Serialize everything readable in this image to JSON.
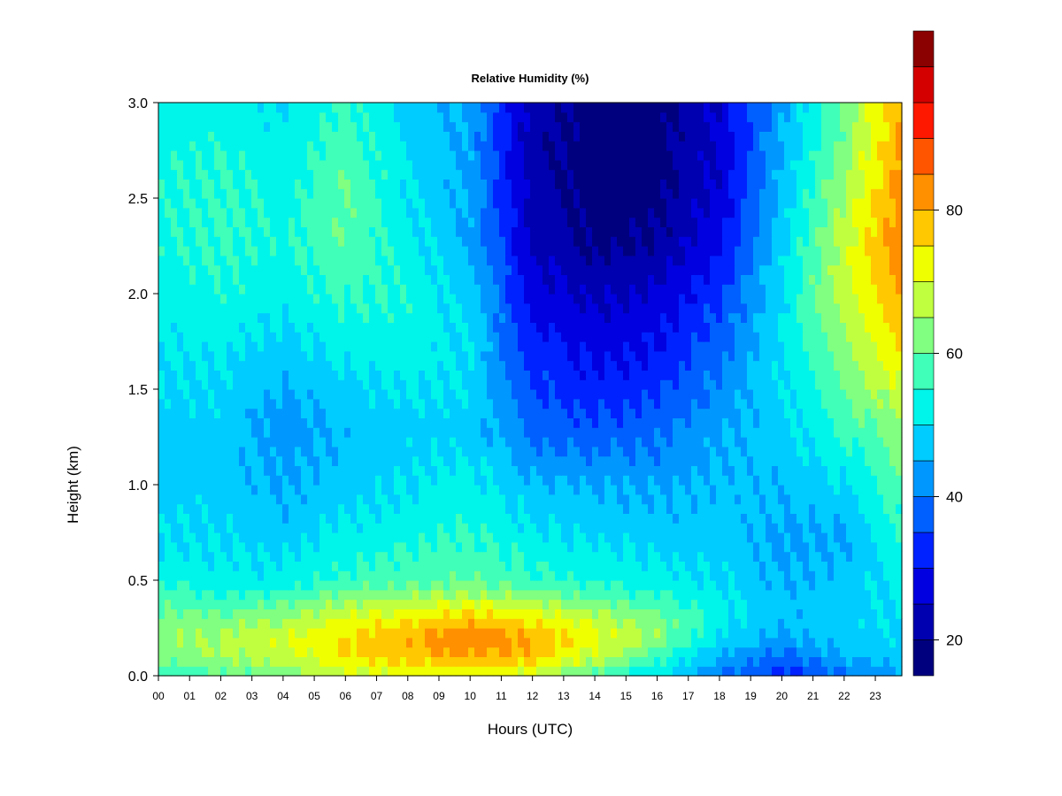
{
  "chart_data": {
    "type": "heatmap",
    "title": "Relative Humidity (%)",
    "xlabel": "Hours (UTC)",
    "ylabel": "Height (km)",
    "xlim": [
      0,
      23.85
    ],
    "ylim": [
      0,
      3.0
    ],
    "x_ticks": [
      "00",
      "01",
      "02",
      "03",
      "04",
      "05",
      "06",
      "07",
      "08",
      "09",
      "10",
      "11",
      "12",
      "13",
      "14",
      "15",
      "16",
      "17",
      "18",
      "19",
      "20",
      "21",
      "22",
      "23"
    ],
    "y_ticks": [
      "0.0",
      "0.5",
      "1.0",
      "1.5",
      "2.0",
      "2.5",
      "3.0"
    ],
    "heights_km": [
      0.0,
      0.1,
      0.2,
      0.3,
      0.4,
      0.5,
      0.7,
      1.0,
      1.3,
      1.6,
      2.0,
      2.3,
      2.6,
      3.0
    ],
    "hours": [
      0,
      2,
      4,
      6,
      8,
      10,
      12,
      14,
      16,
      18,
      20,
      22,
      23.8
    ],
    "rh_percent": [
      [
        55,
        58,
        62,
        68,
        70,
        70,
        68,
        58,
        50,
        40,
        33,
        38,
        45
      ],
      [
        62,
        65,
        68,
        75,
        78,
        80,
        78,
        68,
        58,
        45,
        38,
        45,
        48
      ],
      [
        64,
        66,
        70,
        76,
        80,
        84,
        80,
        72,
        64,
        50,
        44,
        48,
        50
      ],
      [
        62,
        62,
        64,
        70,
        74,
        78,
        74,
        68,
        62,
        52,
        46,
        48,
        50
      ],
      [
        58,
        56,
        58,
        64,
        66,
        68,
        64,
        60,
        56,
        52,
        46,
        48,
        50
      ],
      [
        54,
        52,
        52,
        56,
        58,
        60,
        56,
        54,
        52,
        50,
        45,
        47,
        52
      ],
      [
        50,
        50,
        48,
        52,
        54,
        56,
        52,
        50,
        48,
        48,
        44,
        44,
        54
      ],
      [
        48,
        48,
        44,
        48,
        50,
        52,
        46,
        45,
        44,
        46,
        46,
        50,
        58
      ],
      [
        48,
        48,
        42,
        46,
        48,
        48,
        38,
        36,
        38,
        44,
        48,
        56,
        64
      ],
      [
        50,
        50,
        46,
        50,
        52,
        50,
        34,
        30,
        32,
        40,
        50,
        62,
        72
      ],
      [
        52,
        54,
        52,
        56,
        54,
        48,
        28,
        24,
        26,
        34,
        50,
        68,
        82
      ],
      [
        54,
        56,
        54,
        60,
        52,
        44,
        24,
        18,
        20,
        28,
        48,
        68,
        84
      ],
      [
        54,
        56,
        52,
        60,
        50,
        44,
        22,
        17,
        18,
        26,
        46,
        64,
        82
      ],
      [
        52,
        52,
        50,
        56,
        48,
        44,
        22,
        18,
        18,
        26,
        44,
        60,
        80
      ]
    ],
    "colorbar": {
      "range": [
        15,
        95
      ],
      "step": 5,
      "tick_labels": [
        "20",
        "40",
        "60",
        "80"
      ],
      "tick_values": [
        20,
        40,
        60,
        80
      ],
      "colors": [
        "#00007F",
        "#0000B0",
        "#0000E0",
        "#0022FF",
        "#0060FF",
        "#0098FF",
        "#00CCFF",
        "#00F5EA",
        "#40FFB8",
        "#80FF80",
        "#C0FF40",
        "#F0FF00",
        "#FFC800",
        "#FF9000",
        "#FF5500",
        "#FF1800",
        "#D40000",
        "#8B0000"
      ]
    }
  }
}
